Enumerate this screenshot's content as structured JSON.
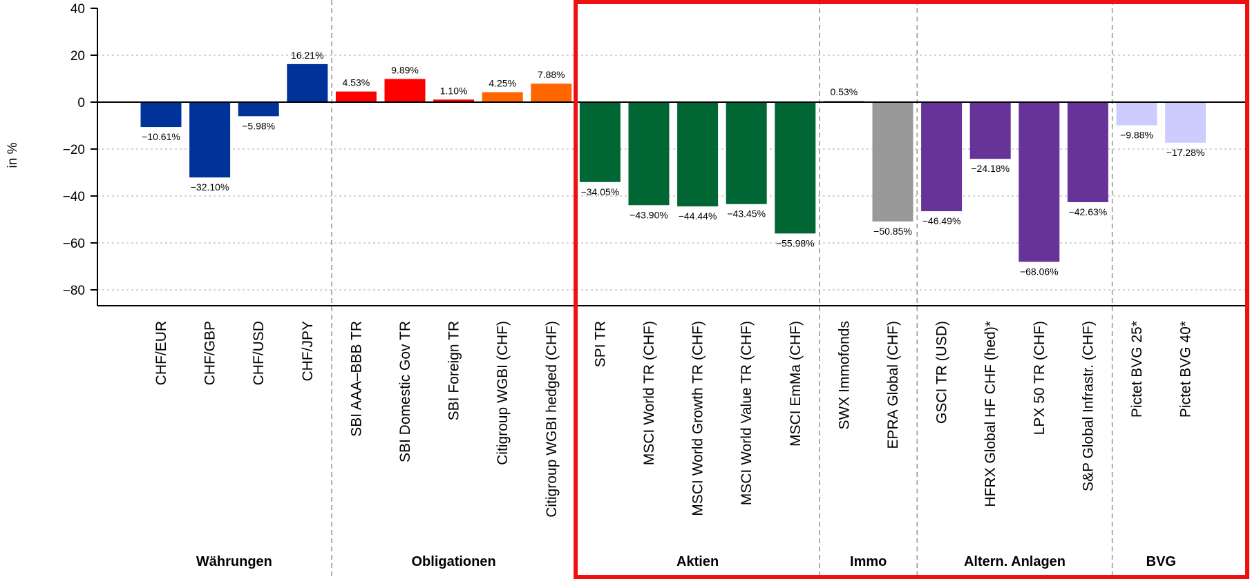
{
  "chart_data": {
    "type": "bar",
    "ylabel": "in %",
    "ylim": [
      -86,
      40
    ],
    "yticks": [
      40,
      20,
      0,
      -20,
      -40,
      -60,
      -80
    ],
    "grid": true,
    "categories": [
      "CHF/EUR",
      "CHF/GBP",
      "CHF/USD",
      "CHF/JPY",
      "SBI AAA–BBB TR",
      "SBI Domestic Gov TR",
      "SBI Foreign TR",
      "Citigroup WGBI (CHF)",
      "Citigroup WGBI hedged (CHF)",
      "SPI TR",
      "MSCI World TR (CHF)",
      "MSCI World Growth TR (CHF)",
      "MSCI World Value TR (CHF)",
      "MSCI EmMa (CHF)",
      "SWX Immofonds",
      "EPRA Global (CHF)",
      "GSCI TR (USD)",
      "HFRX Global HF CHF (hed)*",
      "LPX 50 TR (CHF)",
      "S&P Global Infrastr. (CHF)",
      "Pictet BVG 25*",
      "Pictet BVG 40*"
    ],
    "values": [
      -10.61,
      -32.1,
      -5.98,
      16.21,
      4.53,
      9.89,
      1.1,
      4.25,
      7.88,
      -34.05,
      -43.9,
      -44.44,
      -43.45,
      -55.98,
      0.53,
      -50.85,
      -46.49,
      -24.18,
      -68.06,
      -42.63,
      -9.88,
      -17.28
    ],
    "value_labels": [
      "-10.61%",
      "-32.10%",
      "-5.98%",
      "16.21%",
      "4.53%",
      "9.89%",
      "1.10%",
      "4.25%",
      "7.88%",
      "-34.05%",
      "-43.90%",
      "-44.44%",
      "-43.45%",
      "-55.98%",
      "0.53%",
      "-50.85%",
      "-46.49%",
      "-24.18%",
      "-68.06%",
      "-42.63%",
      "-9.88%",
      "-17.28%"
    ],
    "colors": [
      "#003399",
      "#003399",
      "#003399",
      "#003399",
      "#ff0000",
      "#ff0000",
      "#ff0000",
      "#ff6600",
      "#ff6600",
      "#006633",
      "#006633",
      "#006633",
      "#006633",
      "#006633",
      "#999999",
      "#999999",
      "#663399",
      "#663399",
      "#663399",
      "#663399",
      "#ccccff",
      "#ccccff"
    ],
    "groups": [
      {
        "name": "Währungen",
        "start": 0,
        "end": 3
      },
      {
        "name": "Obligationen",
        "start": 4,
        "end": 8
      },
      {
        "name": "Aktien",
        "start": 9,
        "end": 13
      },
      {
        "name": "Immo",
        "start": 14,
        "end": 15
      },
      {
        "name": "Altern. Anlagen",
        "start": 16,
        "end": 19
      },
      {
        "name": "BVG",
        "start": 20,
        "end": 21
      }
    ],
    "highlight": {
      "from_group": "Aktien",
      "to_group": "BVG",
      "color": "#ee1111"
    }
  }
}
